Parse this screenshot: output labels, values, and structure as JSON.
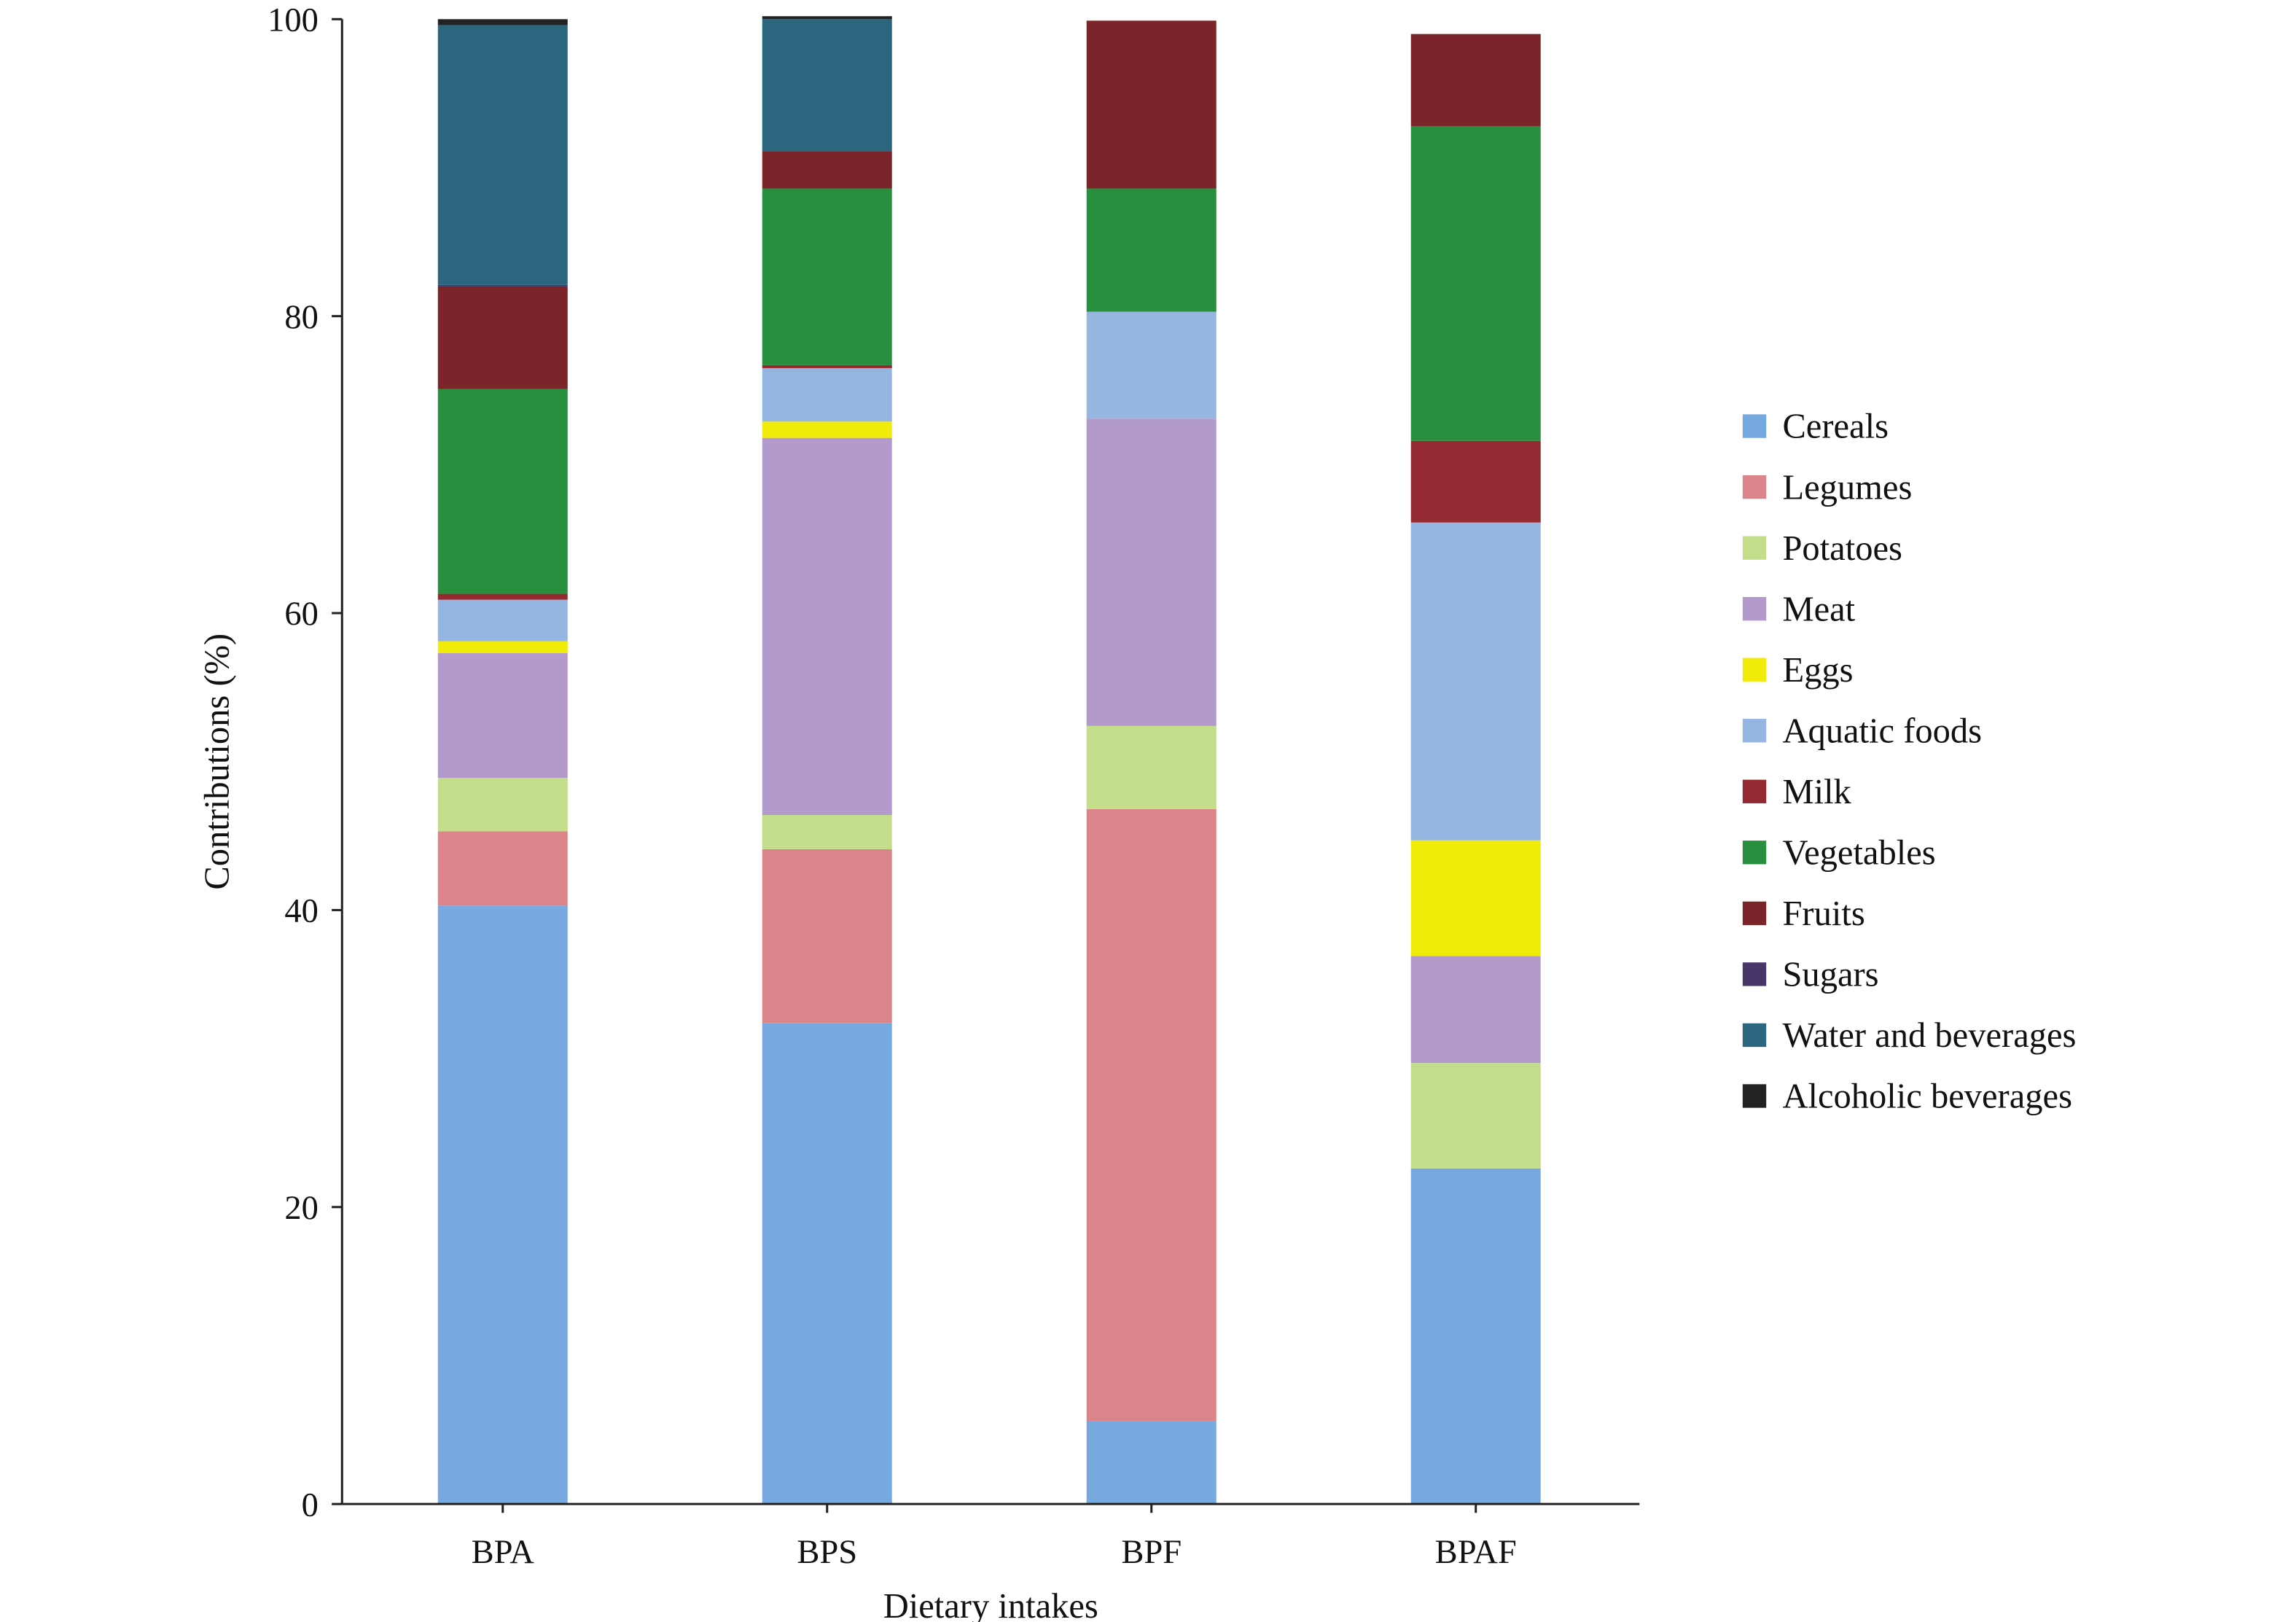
{
  "chart_data": {
    "type": "bar",
    "stacked": true,
    "title": "",
    "xlabel": "Dietary intakes",
    "ylabel": "Contributions (%)",
    "ylim": [
      0,
      100
    ],
    "yticks": [
      "0",
      "20",
      "40",
      "60",
      "80",
      "100"
    ],
    "categories": [
      "BPA",
      "BPS",
      "BPF",
      "BPAF"
    ],
    "legend_position": "right",
    "series": [
      {
        "name": "Cereals",
        "color": "#76a9e0",
        "values": [
          40.3,
          32.4,
          5.6,
          22.6
        ]
      },
      {
        "name": "Legumes",
        "color": "#db848a",
        "values": [
          5.0,
          11.7,
          41.2,
          0
        ]
      },
      {
        "name": "Potatoes",
        "color": "#c3dd8a",
        "values": [
          3.6,
          2.3,
          5.6,
          7.1
        ]
      },
      {
        "name": "Meat",
        "color": "#b39acd",
        "values": [
          8.4,
          25.4,
          20.7,
          7.2
        ]
      },
      {
        "name": "Eggs",
        "color": "#f1eb0a",
        "values": [
          0.8,
          1.1,
          0,
          7.8
        ]
      },
      {
        "name": "Aquatic foods",
        "color": "#96b6e2",
        "values": [
          2.8,
          3.6,
          7.2,
          21.4
        ]
      },
      {
        "name": "Milk",
        "color": "#932a31",
        "values": [
          0.4,
          0.2,
          0,
          5.5
        ]
      },
      {
        "name": "Vegetables",
        "color": "#288f3e",
        "values": [
          13.8,
          11.9,
          8.3,
          21.2
        ]
      },
      {
        "name": "Fruits",
        "color": "#7b2429",
        "values": [
          6.9,
          2.5,
          11.3,
          6.2
        ]
      },
      {
        "name": "Sugars",
        "color": "#463768",
        "values": [
          0.1,
          0,
          0,
          0
        ]
      },
      {
        "name": "Water and beverages",
        "color": "#2c667e",
        "values": [
          17.5,
          8.9,
          0,
          0
        ]
      },
      {
        "name": "Alcoholic beverages",
        "color": "#222222",
        "values": [
          0.4,
          0.2,
          0,
          0
        ]
      }
    ],
    "bar_colors_note": ""
  }
}
